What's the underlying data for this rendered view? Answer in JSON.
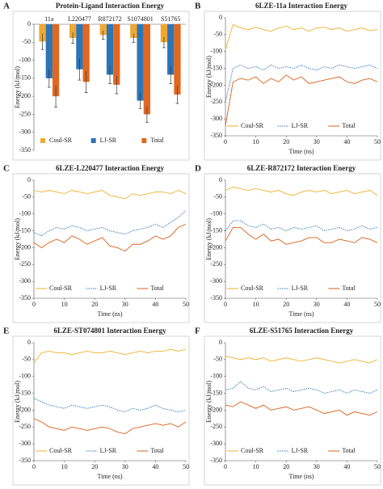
{
  "chart_data": [
    {
      "type": "bar",
      "label": "A",
      "title": "Protein-Ligand Interaction Energy",
      "ylabel": "Energy (kJ/mol)",
      "categories": [
        "11a",
        "L220477",
        "R872172",
        "S1074801",
        "S51765"
      ],
      "series": [
        {
          "name": "Coul-SR",
          "color": "#f0a830",
          "values": [
            -48,
            -38,
            -30,
            -38,
            -50
          ],
          "errors": [
            22,
            15,
            12,
            12,
            15
          ]
        },
        {
          "name": "LJ-SR",
          "color": "#2e75b6",
          "values": [
            -150,
            -125,
            -140,
            -212,
            -140
          ],
          "errors": [
            25,
            30,
            25,
            22,
            25
          ]
        },
        {
          "name": "Total",
          "color": "#e06820",
          "values": [
            -200,
            -160,
            -168,
            -250,
            -195
          ],
          "errors": [
            30,
            30,
            25,
            22,
            25
          ]
        }
      ],
      "ylim": [
        -350,
        0
      ],
      "yticks": [
        0,
        -50,
        -100,
        -150,
        -200,
        -250,
        -300,
        -350
      ]
    },
    {
      "type": "line",
      "label": "B",
      "title": "6LZE-11a Interaction Energy",
      "ylabel": "Energy (kJ/mol)",
      "xlabel": "Time (ns)",
      "x": [
        0,
        2.5,
        5,
        7.5,
        10,
        12.5,
        15,
        17.5,
        20,
        22.5,
        25,
        27.5,
        30,
        32.5,
        35,
        37.5,
        40,
        42.5,
        45,
        47.5,
        50
      ],
      "series": [
        {
          "name": "Coul-SR",
          "color": "#f0b030",
          "values": [
            -95,
            -20,
            -30,
            -35,
            -28,
            -35,
            -40,
            -30,
            -25,
            -35,
            -30,
            -40,
            -30,
            -28,
            -35,
            -30,
            -40,
            -35,
            -30,
            -38,
            -35
          ]
        },
        {
          "name": "LJ-SR",
          "color": "#2e75b6",
          "values": [
            -250,
            -150,
            -140,
            -150,
            -145,
            -155,
            -140,
            -150,
            -145,
            -150,
            -140,
            -150,
            -155,
            -145,
            -150,
            -140,
            -145,
            -150,
            -145,
            -140,
            -150
          ]
        },
        {
          "name": "Total",
          "color": "#d9601a",
          "values": [
            -320,
            -190,
            -180,
            -185,
            -175,
            -195,
            -180,
            -190,
            -170,
            -185,
            -175,
            -195,
            -190,
            -185,
            -180,
            -175,
            -190,
            -195,
            -185,
            -180,
            -190
          ]
        }
      ],
      "xlim": [
        0,
        50
      ],
      "xticks": [
        0,
        10,
        20,
        30,
        40,
        50
      ],
      "ylim": [
        -350,
        0
      ],
      "yticks": [
        0,
        -50,
        -100,
        -150,
        -200,
        -250,
        -300,
        -350
      ]
    },
    {
      "type": "line",
      "label": "C",
      "title": "6LZE-L220477 Interaction Energy",
      "ylabel": "Energy (kJ/mol)",
      "xlabel": "Time (ns)",
      "x": [
        0,
        2.5,
        5,
        7.5,
        10,
        12.5,
        15,
        17.5,
        20,
        22.5,
        25,
        27.5,
        30,
        32.5,
        35,
        37.5,
        40,
        42.5,
        45,
        47.5,
        50
      ],
      "series": [
        {
          "name": "Coul-SR",
          "color": "#f0b030",
          "values": [
            -30,
            -35,
            -30,
            -35,
            -40,
            -30,
            -35,
            -40,
            -35,
            -30,
            -45,
            -50,
            -55,
            -40,
            -45,
            -40,
            -35,
            -35,
            -40,
            -30,
            -40
          ]
        },
        {
          "name": "LJ-SR",
          "color": "#2e75b6",
          "values": [
            -155,
            -165,
            -150,
            -140,
            -145,
            -135,
            -140,
            -150,
            -145,
            -140,
            -150,
            -155,
            -160,
            -150,
            -145,
            -140,
            -130,
            -140,
            -125,
            -110,
            -90
          ]
        },
        {
          "name": "Total",
          "color": "#d9601a",
          "values": [
            -185,
            -200,
            -185,
            -175,
            -185,
            -165,
            -175,
            -190,
            -180,
            -170,
            -195,
            -200,
            -210,
            -190,
            -190,
            -180,
            -165,
            -175,
            -165,
            -140,
            -130
          ]
        }
      ],
      "xlim": [
        0,
        50
      ],
      "xticks": [
        0,
        10,
        20,
        30,
        40,
        50
      ],
      "ylim": [
        -350,
        0
      ],
      "yticks": [
        0,
        -50,
        -100,
        -150,
        -200,
        -250,
        -300,
        -350
      ]
    },
    {
      "type": "line",
      "label": "D",
      "title": "6LZE-R872172 Interaction Energy",
      "ylabel": "Energy (kJ/mol)",
      "xlabel": "Time (ns)",
      "x": [
        0,
        2.5,
        5,
        7.5,
        10,
        12.5,
        15,
        17.5,
        20,
        22.5,
        25,
        27.5,
        30,
        32.5,
        35,
        37.5,
        40,
        42.5,
        45,
        47.5,
        50
      ],
      "series": [
        {
          "name": "Coul-SR",
          "color": "#f0b030",
          "values": [
            -30,
            -20,
            -25,
            -30,
            -25,
            -30,
            -35,
            -30,
            -40,
            -45,
            -35,
            -30,
            -35,
            -30,
            -40,
            -35,
            -30,
            -40,
            -35,
            -30,
            -45
          ]
        },
        {
          "name": "LJ-SR",
          "color": "#2e75b6",
          "values": [
            -150,
            -120,
            -120,
            -135,
            -140,
            -130,
            -145,
            -140,
            -150,
            -140,
            -145,
            -140,
            -135,
            -150,
            -145,
            -140,
            -150,
            -145,
            -135,
            -145,
            -140
          ]
        },
        {
          "name": "Total",
          "color": "#d9601a",
          "values": [
            -180,
            -140,
            -140,
            -160,
            -175,
            -160,
            -180,
            -175,
            -190,
            -185,
            -180,
            -170,
            -170,
            -185,
            -185,
            -175,
            -180,
            -185,
            -170,
            -175,
            -185
          ]
        }
      ],
      "xlim": [
        0,
        50
      ],
      "xticks": [
        0,
        10,
        20,
        30,
        40,
        50
      ],
      "ylim": [
        -350,
        0
      ],
      "yticks": [
        0,
        -50,
        -100,
        -150,
        -200,
        -250,
        -300,
        -350
      ]
    },
    {
      "type": "line",
      "label": "E",
      "title": "6LZE-ST074801 Interaction Energy",
      "ylabel": "Energy (kJ/mol)",
      "xlabel": "Time (ns)",
      "x": [
        0,
        2.5,
        5,
        7.5,
        10,
        12.5,
        15,
        17.5,
        20,
        22.5,
        25,
        27.5,
        30,
        32.5,
        35,
        37.5,
        40,
        42.5,
        45,
        47.5,
        50
      ],
      "series": [
        {
          "name": "Coul-SR",
          "color": "#f0b030",
          "values": [
            -60,
            -30,
            -25,
            -30,
            -30,
            -35,
            -30,
            -25,
            -30,
            -30,
            -25,
            -30,
            -35,
            -30,
            -25,
            -30,
            -25,
            -25,
            -20,
            -25,
            -20
          ]
        },
        {
          "name": "LJ-SR",
          "color": "#2e75b6",
          "values": [
            -165,
            -175,
            -185,
            -190,
            -195,
            -185,
            -190,
            -195,
            -190,
            -185,
            -190,
            -200,
            -205,
            -195,
            -200,
            -195,
            -185,
            -195,
            -200,
            -205,
            -200
          ]
        },
        {
          "name": "Total",
          "color": "#d9601a",
          "values": [
            -225,
            -235,
            -250,
            -255,
            -260,
            -250,
            -255,
            -260,
            -255,
            -250,
            -255,
            -265,
            -270,
            -255,
            -250,
            -245,
            -240,
            -245,
            -240,
            -250,
            -235
          ]
        }
      ],
      "xlim": [
        0,
        50
      ],
      "xticks": [
        0,
        10,
        20,
        30,
        40,
        50
      ],
      "ylim": [
        -350,
        0
      ],
      "yticks": [
        0,
        -50,
        -100,
        -150,
        -200,
        -250,
        -300,
        -350
      ]
    },
    {
      "type": "line",
      "label": "F",
      "title": "6LZE-S51765 Interaction Energy",
      "ylabel": "Energy (kJ/mol)",
      "xlabel": "Time (ns)",
      "x": [
        0,
        2.5,
        5,
        7.5,
        10,
        12.5,
        15,
        17.5,
        20,
        22.5,
        25,
        27.5,
        30,
        32.5,
        35,
        37.5,
        40,
        42.5,
        45,
        47.5,
        50
      ],
      "series": [
        {
          "name": "Coul-SR",
          "color": "#f0b030",
          "values": [
            -40,
            -45,
            -50,
            -45,
            -50,
            -45,
            -55,
            -50,
            -45,
            -50,
            -55,
            -50,
            -45,
            -50,
            -55,
            -60,
            -55,
            -50,
            -55,
            -60,
            -50
          ]
        },
        {
          "name": "LJ-SR",
          "color": "#2e75b6",
          "values": [
            -140,
            -135,
            -115,
            -135,
            -140,
            -130,
            -145,
            -140,
            -135,
            -145,
            -140,
            -135,
            -140,
            -150,
            -145,
            -140,
            -150,
            -140,
            -145,
            -150,
            -140
          ]
        },
        {
          "name": "Total",
          "color": "#d9601a",
          "values": [
            -185,
            -190,
            -175,
            -185,
            -195,
            -185,
            -200,
            -195,
            -190,
            -200,
            -195,
            -190,
            -200,
            -210,
            -205,
            -200,
            -215,
            -205,
            -210,
            -215,
            -205
          ]
        }
      ],
      "xlim": [
        0,
        50
      ],
      "xticks": [
        0,
        10,
        20,
        30,
        40,
        50
      ],
      "ylim": [
        -350,
        0
      ],
      "yticks": [
        0,
        -50,
        -100,
        -150,
        -200,
        -250,
        -300,
        -350
      ]
    }
  ]
}
